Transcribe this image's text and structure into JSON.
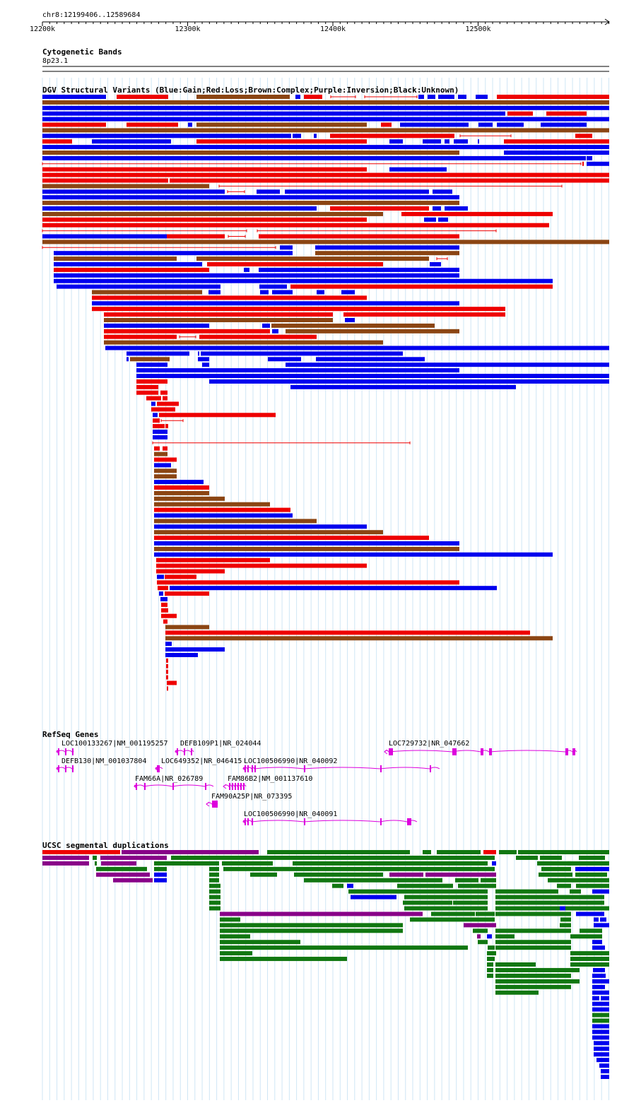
{
  "header": {
    "location": "chr8:12199406..12589684",
    "ruler": {
      "ticks": [
        {
          "label": "12200k",
          "pos": 12200000
        },
        {
          "label": "12300k",
          "pos": 12300000
        },
        {
          "label": "12400k",
          "pos": 12400000
        },
        {
          "label": "12500k",
          "pos": 12500000
        }
      ]
    }
  },
  "tracks": {
    "cytoband": {
      "title": "Cytogenetic Bands",
      "band": "8p23.1"
    },
    "dgv": {
      "title": "DGV Structural Variants (Blue:Gain;Red:Loss;Brown:Complex;Purple:Inversion;Black:Unknown)",
      "legend_colors": {
        "gain": "#0000ee",
        "loss": "#ee0000",
        "complex": "#8b4513",
        "inversion": "#880088",
        "unknown": "#000000"
      }
    },
    "refseq": {
      "title": "RefSeq Genes",
      "color": "#dd00dd",
      "genes": [
        {
          "label": "LOC100133267|NM_001195257"
        },
        {
          "label": "DEFB109P1|NR_024044"
        },
        {
          "label": "LOC729732|NR_047662"
        },
        {
          "label": "DEFB130|NM_001037804"
        },
        {
          "label": "LOC649352|NR_046415"
        },
        {
          "label": "LOC100506990|NR_040092"
        },
        {
          "label": "FAM66A|NR_026789"
        },
        {
          "label": "FAM86B2|NM_001137610"
        },
        {
          "label": "FAM90A25P|NR_073395"
        },
        {
          "label": "LOC100506990|NR_040091"
        }
      ]
    },
    "segdups": {
      "title": "UCSC segmental duplications",
      "colors": {
        "red": "#ee0000",
        "purple": "#880088",
        "green": "#117711",
        "blue": "#0000ee"
      }
    }
  }
}
